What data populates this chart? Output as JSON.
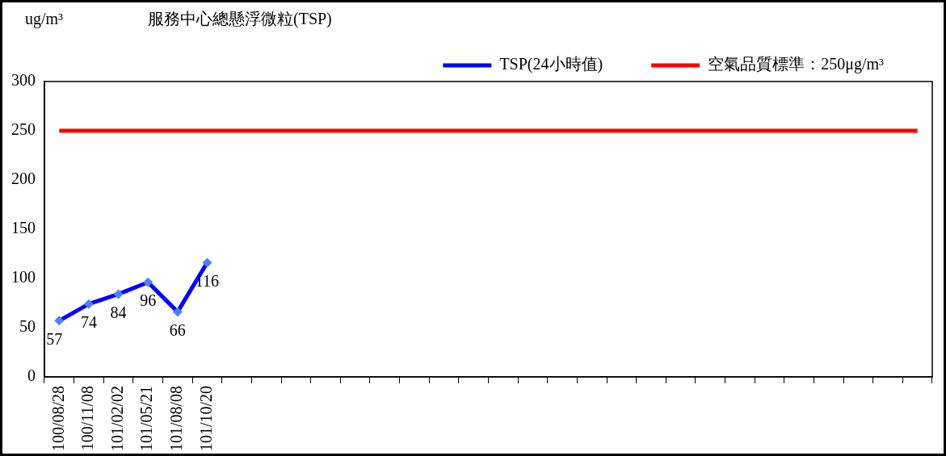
{
  "chart_data": {
    "type": "line",
    "title": "服務中心總懸浮微粒(TSP)",
    "ylabel": "ug/m³",
    "categories": [
      "100/08/28",
      "100/11/08",
      "101/02/02",
      "101/05/21",
      "101/08/08",
      "101/10/20",
      null,
      null,
      null,
      null,
      null,
      null,
      null,
      null,
      null,
      null,
      null,
      null,
      null,
      null,
      null,
      null,
      null,
      null,
      null,
      null,
      null,
      null,
      null,
      null
    ],
    "series": [
      {
        "name": "TSP(24小時值)",
        "color": "#0000ff",
        "marker": "diamond",
        "values": [
          57,
          74,
          84,
          96,
          66,
          116,
          null,
          null,
          null,
          null,
          null,
          null,
          null,
          null,
          null,
          null,
          null,
          null,
          null,
          null,
          null,
          null,
          null,
          null,
          null,
          null,
          null,
          null,
          null,
          null
        ],
        "value_labels": [
          "57",
          "74",
          "84",
          "96",
          "66",
          "116",
          null,
          null,
          null,
          null,
          null,
          null,
          null,
          null,
          null,
          null,
          null,
          null,
          null,
          null,
          null,
          null,
          null,
          null,
          null,
          null,
          null,
          null,
          null,
          null
        ]
      },
      {
        "name": "空氣品質標準：250μg/m³",
        "color": "#ff0000",
        "marker": "none",
        "values": [
          250,
          250,
          250,
          250,
          250,
          250,
          250,
          250,
          250,
          250,
          250,
          250,
          250,
          250,
          250,
          250,
          250,
          250,
          250,
          250,
          250,
          250,
          250,
          250,
          250,
          250,
          250,
          250,
          250,
          250
        ]
      }
    ],
    "ylim": [
      0,
      300
    ],
    "yticks": [
      0,
      50,
      100,
      150,
      200,
      250,
      300
    ],
    "legend": "top right"
  }
}
